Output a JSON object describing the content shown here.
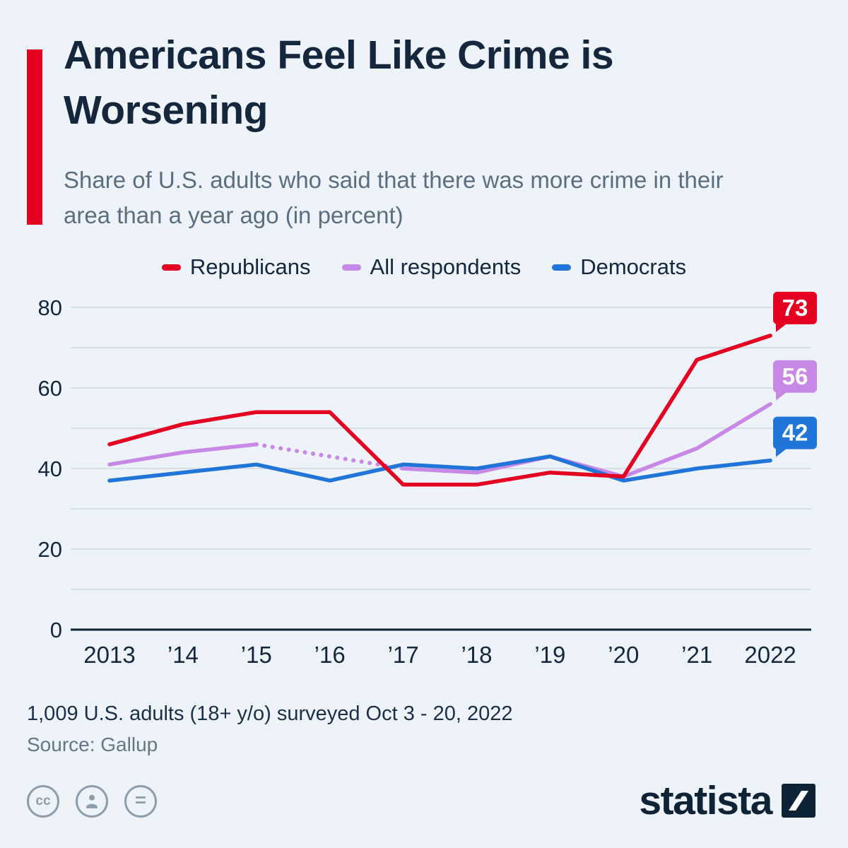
{
  "page": {
    "background": "#edf3f8",
    "accent_color": "#e50022",
    "title": "Americans Feel Like Crime is Worsening",
    "subtitle": "Share of U.S. adults who said that there was more crime in their area than a year ago (in percent)"
  },
  "legend": [
    {
      "label": "Republicans",
      "color": "#e50022"
    },
    {
      "label": "All respondents",
      "color": "#c789e5"
    },
    {
      "label": "Democrats",
      "color": "#2175d9"
    }
  ],
  "chart_data": {
    "type": "line",
    "title": "Share of U.S. adults who said that there was more crime in their area than a year ago (in percent)",
    "x": [
      2013,
      2014,
      2015,
      2016,
      2017,
      2018,
      2019,
      2020,
      2021,
      2022
    ],
    "x_tick_labels": [
      "2013",
      "’14",
      "’15",
      "’16",
      "’17",
      "’18",
      "’19",
      "’20",
      "’21",
      "2022"
    ],
    "series": [
      {
        "name": "Republicans",
        "color": "#e50022",
        "values": [
          46,
          51,
          54,
          54,
          36,
          36,
          39,
          38,
          67,
          73
        ],
        "end_label": "73"
      },
      {
        "name": "All respondents",
        "color": "#c789e5",
        "values": [
          41,
          44,
          46,
          null,
          40,
          39,
          43,
          38,
          45,
          56
        ],
        "end_label": "56",
        "gap_style": "dotted"
      },
      {
        "name": "Democrats",
        "color": "#2175d9",
        "values": [
          37,
          39,
          41,
          37,
          41,
          40,
          43,
          37,
          40,
          42
        ],
        "end_label": "42"
      }
    ],
    "ylim": [
      0,
      80
    ],
    "yticks": [
      0,
      20,
      40,
      60,
      80
    ],
    "grid": true,
    "legend_position": "top"
  },
  "footer": {
    "note": "1,009 U.S. adults (18+ y/o) surveyed Oct 3 - 20, 2022",
    "source": "Source: Gallup"
  },
  "license": {
    "cc": "cc",
    "nd": "="
  },
  "branding": {
    "logo_text": "statista"
  }
}
